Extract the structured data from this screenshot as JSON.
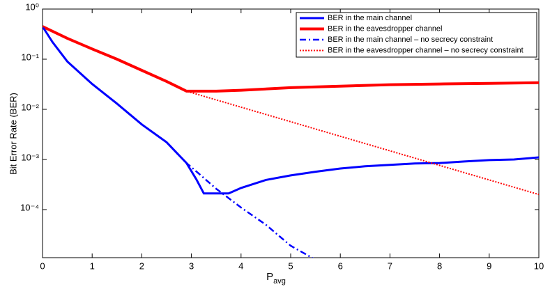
{
  "chart_data": {
    "type": "line",
    "x_label": "P",
    "x_label_subscript": "avg",
    "y_label": "Bit Error Rate (BER)",
    "xlim": [
      0,
      10
    ],
    "xticks": [
      0,
      1,
      2,
      3,
      4,
      5,
      6,
      7,
      8,
      9,
      10
    ],
    "ylim": [
      1.1e-05,
      1
    ],
    "log_y": true,
    "yticks": [
      {
        "value": 1,
        "label": "10⁰"
      },
      {
        "value": 0.1,
        "label": "10⁻¹"
      },
      {
        "value": 0.01,
        "label": "10⁻²"
      },
      {
        "value": 0.001,
        "label": "10⁻³"
      },
      {
        "value": 0.0001,
        "label": "10⁻⁴"
      }
    ],
    "legend": "upper right",
    "series": [
      {
        "name": "BER in the main channel",
        "color": "#0000ff",
        "style": "solid",
        "width": 3,
        "x": [
          0,
          0.2,
          0.5,
          1,
          1.5,
          2,
          2.5,
          2.9,
          3.1,
          3.25,
          3.5,
          3.75,
          4,
          4.5,
          5,
          5.5,
          6,
          6.5,
          7,
          7.5,
          8,
          8.5,
          9,
          9.5,
          10
        ],
        "values": [
          0.45,
          0.22,
          0.09,
          0.032,
          0.013,
          0.005,
          0.0022,
          0.00085,
          0.0004,
          0.00021,
          0.00021,
          0.00021,
          0.00027,
          0.00039,
          0.00048,
          0.00057,
          0.00066,
          0.00073,
          0.00078,
          0.00083,
          0.00085,
          0.00091,
          0.00097,
          0.001,
          0.0011
        ]
      },
      {
        "name": "BER in the eavesdropper channel",
        "color": "#ff0000",
        "style": "solid",
        "width": 4,
        "x": [
          0,
          0.5,
          1,
          1.5,
          2,
          2.5,
          2.9,
          3.5,
          4,
          5,
          6,
          7,
          8,
          9,
          10
        ],
        "values": [
          0.45,
          0.26,
          0.16,
          0.1,
          0.06,
          0.036,
          0.023,
          0.023,
          0.024,
          0.027,
          0.029,
          0.031,
          0.032,
          0.033,
          0.034
        ]
      },
      {
        "name": "BER in the main channel – no secrecy constraint",
        "color": "#0000ff",
        "style": "dash-dot",
        "width": 2.5,
        "x": [
          0,
          0.2,
          0.5,
          1,
          1.5,
          2,
          2.5,
          2.9,
          3,
          3.5,
          4,
          4.5,
          5,
          5.45
        ],
        "values": [
          0.45,
          0.22,
          0.09,
          0.032,
          0.013,
          0.005,
          0.0022,
          0.00085,
          0.0007,
          0.00026,
          0.00011,
          5e-05,
          1.9e-05,
          1.07e-05
        ]
      },
      {
        "name": "BER in the eavesdropper channel – no secrecy constraint",
        "color": "#ff0000",
        "style": "dotted",
        "width": 2,
        "x": [
          0,
          0.5,
          1,
          1.5,
          2,
          2.5,
          2.9,
          10
        ],
        "values": [
          0.45,
          0.26,
          0.16,
          0.1,
          0.06,
          0.036,
          0.023,
          0.0002
        ]
      }
    ]
  }
}
